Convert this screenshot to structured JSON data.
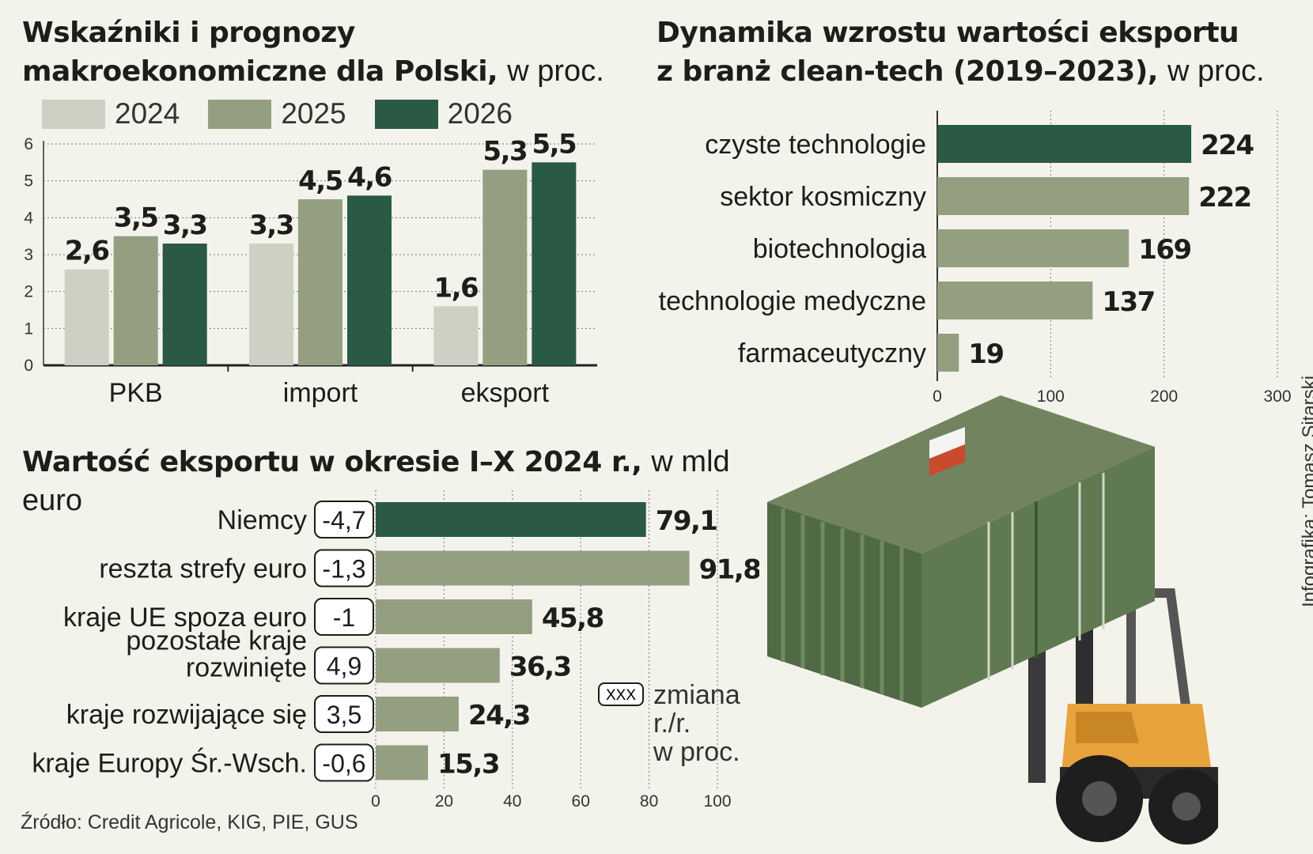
{
  "macro": {
    "title_bold": "Wskaźniki i prognozy makroekonomiczne dla Polski,",
    "title_unit": "w proc.",
    "legend": [
      "2024",
      "2025",
      "2026"
    ],
    "colors": [
      "#ccd1c4",
      "#949f82",
      "#2b5a44"
    ],
    "chart_data": {
      "type": "bar",
      "categories": [
        "PKB",
        "import",
        "eksport"
      ],
      "series": [
        {
          "name": "2024",
          "values": [
            2.6,
            3.3,
            1.6
          ]
        },
        {
          "name": "2025",
          "values": [
            3.5,
            4.5,
            5.3
          ]
        },
        {
          "name": "2026",
          "values": [
            3.3,
            4.6,
            5.5
          ]
        }
      ],
      "labels": [
        [
          "2,6",
          "3,3",
          "1,6"
        ],
        [
          "3,5",
          "4,5",
          "5,3"
        ],
        [
          "3,3",
          "4,6",
          "5,5"
        ]
      ],
      "yticks": [
        "0",
        "1",
        "2",
        "3",
        "4",
        "5",
        "6"
      ],
      "ylim": [
        0,
        6
      ]
    }
  },
  "cleantech": {
    "title_line1": "Dynamika wzrostu wartości eksportu",
    "title_line2_bold": "z branż clean-tech (2019–2023),",
    "title_unit": "w proc.",
    "colors": {
      "highlight": "#2b5a44",
      "normal": "#949f82"
    },
    "chart_data": {
      "type": "bar",
      "orientation": "horizontal",
      "categories": [
        "czyste technologie",
        "sektor kosmiczny",
        "biotechnologia",
        "technologie medyczne",
        "farmaceutyczny"
      ],
      "values": [
        224,
        222,
        169,
        137,
        19
      ],
      "labels": [
        "224",
        "222",
        "169",
        "137",
        "19"
      ],
      "highlight": [
        true,
        false,
        false,
        false,
        false
      ],
      "xticks": [
        "0",
        "100",
        "200",
        "300"
      ],
      "xlim": [
        0,
        300
      ]
    }
  },
  "export_value": {
    "title_bold": "Wartość eksportu w okresie I–X 2024 r.,",
    "title_unit": "w mld euro",
    "colors": {
      "highlight": "#2b5a44",
      "normal": "#949f82"
    },
    "chart_data": {
      "type": "bar",
      "orientation": "horizontal",
      "categories": [
        "Niemcy",
        "reszta strefy euro",
        "kraje UE spoza euro",
        "pozostałe kraje rozwinięte",
        "kraje rozwijające się",
        "kraje Europy Śr.-Wsch."
      ],
      "category_lines": [
        [
          "Niemcy"
        ],
        [
          "reszta strefy euro"
        ],
        [
          "kraje UE spoza euro"
        ],
        [
          "pozostałe kraje",
          "rozwinięte"
        ],
        [
          "kraje rozwijające się"
        ],
        [
          "kraje Europy Śr.-Wsch."
        ]
      ],
      "values": [
        79.1,
        91.8,
        45.8,
        36.3,
        24.3,
        15.3
      ],
      "labels": [
        "79,1",
        "91,8",
        "45,8",
        "36,3",
        "24,3",
        "15,3"
      ],
      "change_yoy": [
        "-4,7",
        "-1,3",
        "-1",
        "4,9",
        "3,5",
        "-0,6"
      ],
      "highlight": [
        true,
        false,
        false,
        false,
        false,
        false
      ],
      "xticks": [
        "0",
        "20",
        "40",
        "60",
        "80",
        "100"
      ],
      "xlim": [
        0,
        100
      ]
    },
    "legend_box": "XXX",
    "legend_text": [
      "zmiana",
      "r./r.",
      "w proc."
    ]
  },
  "source": "Źródło: Credit Agricole, KIG, PIE, GUS",
  "credit": "Infografika: Tomasz Sitarski",
  "illustration": {
    "icon": "forklift-container-icon"
  }
}
